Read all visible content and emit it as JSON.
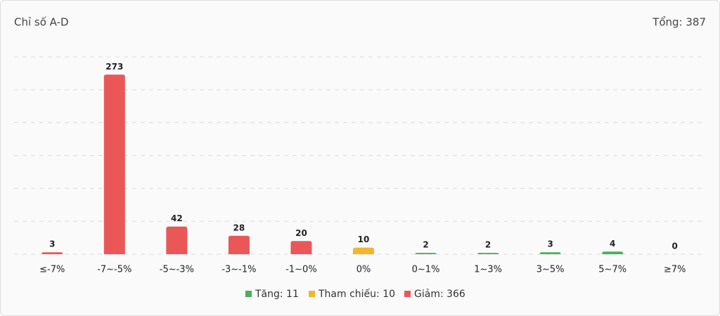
{
  "chart_data": {
    "type": "bar",
    "title": "Chỉ số A-D",
    "total_label": "Tổng: 387",
    "categories": [
      "≤-7%",
      "-7~-5%",
      "-5~-3%",
      "-3~-1%",
      "-1~0%",
      "0%",
      "0~1%",
      "1~3%",
      "3~5%",
      "5~7%",
      "≥7%"
    ],
    "values": [
      3,
      273,
      42,
      28,
      20,
      10,
      2,
      2,
      3,
      4,
      0
    ],
    "colors": [
      "#eb5757",
      "#eb5757",
      "#eb5757",
      "#eb5757",
      "#eb5757",
      "#f2b52c",
      "#4caf5c",
      "#4caf5c",
      "#4caf5c",
      "#4caf5c",
      "#4caf5c"
    ],
    "ylim": [
      0,
      300
    ],
    "yticks": [
      0,
      50,
      100,
      150,
      200,
      250,
      300
    ],
    "grid": true,
    "legend": [
      {
        "label": "Tăng: 11",
        "color": "#4caf5c"
      },
      {
        "label": "Tham chiếu: 10",
        "color": "#f2b52c"
      },
      {
        "label": "Giảm: 366",
        "color": "#eb5757"
      }
    ]
  }
}
